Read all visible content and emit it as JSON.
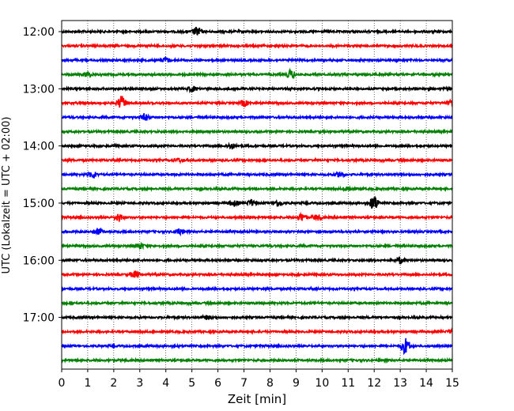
{
  "chart_data": {
    "type": "line",
    "subtype": "helicorder",
    "xlabel": "Zeit  [min]",
    "ylabel": "UTC (Lokalzeit = UTC + 02:00)",
    "xlim": [
      0,
      15
    ],
    "x_ticks": [
      "0",
      "1",
      "2",
      "3",
      "4",
      "5",
      "6",
      "7",
      "8",
      "9",
      "10",
      "11",
      "12",
      "13",
      "14",
      "15"
    ],
    "row_minutes": 15,
    "grid": "vertical-dotted",
    "trace_colors": [
      "#000000",
      "#ff0000",
      "#0000ff",
      "#008000"
    ],
    "y_ticks": [
      {
        "label": "12:00",
        "row": 0
      },
      {
        "label": "13:00",
        "row": 4
      },
      {
        "label": "14:00",
        "row": 8
      },
      {
        "label": "15:00",
        "row": 12
      },
      {
        "label": "16:00",
        "row": 16
      },
      {
        "label": "17:00",
        "row": 20
      }
    ],
    "rows": [
      {
        "start": "12:00",
        "color": "#000000",
        "events": [
          {
            "t": 5.2,
            "amp": 1.5
          }
        ]
      },
      {
        "start": "12:15",
        "color": "#ff0000",
        "events": []
      },
      {
        "start": "12:30",
        "color": "#0000ff",
        "events": [
          {
            "t": 4.0,
            "amp": 0.8
          }
        ]
      },
      {
        "start": "12:45",
        "color": "#008000",
        "events": [
          {
            "t": 8.8,
            "amp": 1.4
          },
          {
            "t": 1.0,
            "amp": 0.8
          }
        ]
      },
      {
        "start": "13:00",
        "color": "#000000",
        "events": [
          {
            "t": 5.0,
            "amp": 0.9
          }
        ]
      },
      {
        "start": "13:15",
        "color": "#ff0000",
        "events": [
          {
            "t": 2.3,
            "amp": 2.2
          },
          {
            "t": 7.0,
            "amp": 1.0
          },
          {
            "t": 15.0,
            "amp": 1.2
          }
        ]
      },
      {
        "start": "13:30",
        "color": "#0000ff",
        "events": [
          {
            "t": 3.2,
            "amp": 1.0
          }
        ]
      },
      {
        "start": "13:45",
        "color": "#008000",
        "events": []
      },
      {
        "start": "14:00",
        "color": "#000000",
        "events": [
          {
            "t": 6.5,
            "amp": 0.9
          }
        ]
      },
      {
        "start": "14:15",
        "color": "#ff0000",
        "events": [
          {
            "t": 4.5,
            "amp": 0.6
          }
        ]
      },
      {
        "start": "14:30",
        "color": "#0000ff",
        "events": [
          {
            "t": 1.2,
            "amp": 1.0
          },
          {
            "t": 10.7,
            "amp": 0.9
          }
        ]
      },
      {
        "start": "14:45",
        "color": "#008000",
        "events": [
          {
            "t": 11.0,
            "amp": 0.8
          }
        ]
      },
      {
        "start": "15:00",
        "color": "#000000",
        "events": [
          {
            "t": 12.0,
            "amp": 2.4
          },
          {
            "t": 6.6,
            "amp": 1.0
          },
          {
            "t": 7.3,
            "amp": 1.0
          },
          {
            "t": 8.3,
            "amp": 1.0
          }
        ]
      },
      {
        "start": "15:15",
        "color": "#ff0000",
        "events": [
          {
            "t": 2.2,
            "amp": 1.2
          },
          {
            "t": 9.2,
            "amp": 1.2
          },
          {
            "t": 9.8,
            "amp": 0.9
          }
        ]
      },
      {
        "start": "15:30",
        "color": "#0000ff",
        "events": [
          {
            "t": 1.4,
            "amp": 1.0
          },
          {
            "t": 4.5,
            "amp": 0.8
          }
        ]
      },
      {
        "start": "15:45",
        "color": "#008000",
        "events": [
          {
            "t": 3.0,
            "amp": 0.9
          }
        ]
      },
      {
        "start": "16:00",
        "color": "#000000",
        "events": [
          {
            "t": 13.0,
            "amp": 1.0
          }
        ]
      },
      {
        "start": "16:15",
        "color": "#ff0000",
        "events": [
          {
            "t": 2.8,
            "amp": 1.0
          }
        ]
      },
      {
        "start": "16:30",
        "color": "#0000ff",
        "events": []
      },
      {
        "start": "16:45",
        "color": "#008000",
        "events": []
      },
      {
        "start": "17:00",
        "color": "#000000",
        "events": [
          {
            "t": 5.6,
            "amp": 0.6
          }
        ]
      },
      {
        "start": "17:15",
        "color": "#ff0000",
        "events": [
          {
            "t": 15.0,
            "amp": 0.8
          }
        ]
      },
      {
        "start": "17:30",
        "color": "#0000ff",
        "events": [
          {
            "t": 13.2,
            "amp": 2.6
          }
        ]
      },
      {
        "start": "17:45",
        "color": "#008000",
        "events": []
      }
    ]
  }
}
